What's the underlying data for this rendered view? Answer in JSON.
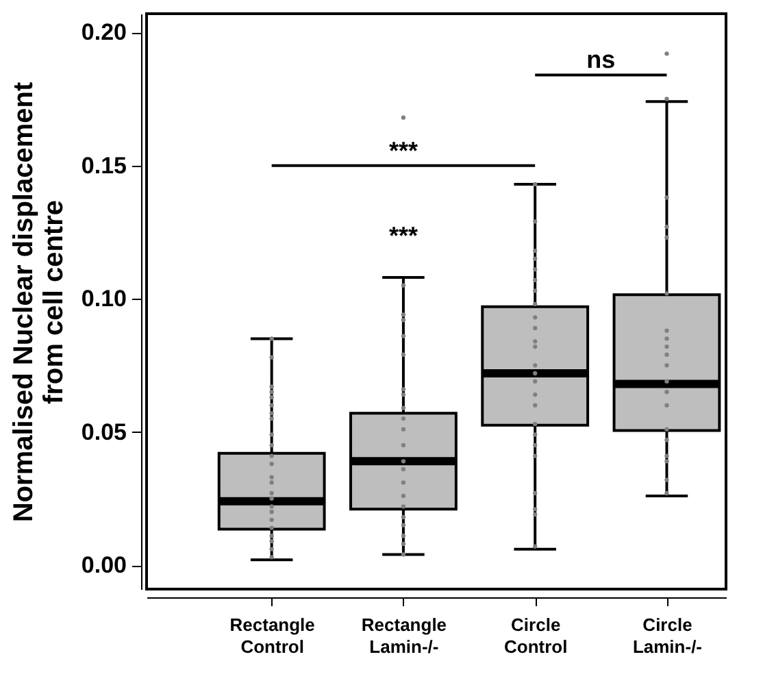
{
  "chart_data": {
    "type": "box",
    "ylabel": "Normalised Nuclear displacement\nfrom cell centre",
    "categories": [
      "Rectangle Control",
      "Rectangle Lamin-/-",
      "Circle Control",
      "Circle Lamin-/-"
    ],
    "ylim": [
      -0.009,
      0.207
    ],
    "yticks": [
      {
        "value": 0,
        "label": "0.00"
      },
      {
        "value": 0.05,
        "label": "0.05"
      },
      {
        "value": 0.1,
        "label": "0.10"
      },
      {
        "value": 0.15,
        "label": "0.15"
      },
      {
        "value": 0.2,
        "label": "0.20"
      }
    ],
    "grid": false,
    "annotations": [
      "***",
      "***",
      "ns"
    ],
    "series": [
      {
        "color": "#bebebe",
        "boxes": [
          {
            "low": 0.002,
            "q1": 0.0135,
            "median": 0.024,
            "q3": 0.042,
            "high": 0.085
          },
          {
            "low": 0.004,
            "q1": 0.021,
            "median": 0.039,
            "q3": 0.057,
            "high": 0.108
          },
          {
            "low": 0.006,
            "q1": 0.0525,
            "median": 0.072,
            "q3": 0.097,
            "high": 0.143
          },
          {
            "low": 0.026,
            "q1": 0.0505,
            "median": 0.068,
            "q3": 0.1015,
            "high": 0.174
          }
        ]
      },
      {
        "type": "scatter",
        "color": "#808080",
        "x": [
          "Rectangle Control",
          "Rectangle Control",
          "Rectangle Control",
          "Rectangle Control",
          "Rectangle Control",
          "Rectangle Control",
          "Rectangle Control",
          "Rectangle Control",
          "Rectangle Control",
          "Rectangle Control",
          "Rectangle Control",
          "Rectangle Control",
          "Rectangle Control",
          "Rectangle Control",
          "Rectangle Control",
          "Rectangle Control",
          "Rectangle Control",
          "Rectangle Control",
          "Rectangle Control",
          "Rectangle Control",
          "Rectangle Control",
          "Rectangle Control",
          "Rectangle Control",
          "Rectangle Control",
          "Rectangle Lamin-/-",
          "Rectangle Lamin-/-",
          "Rectangle Lamin-/-",
          "Rectangle Lamin-/-",
          "Rectangle Lamin-/-",
          "Rectangle Lamin-/-",
          "Rectangle Lamin-/-",
          "Rectangle Lamin-/-",
          "Rectangle Lamin-/-",
          "Rectangle Lamin-/-",
          "Rectangle Lamin-/-",
          "Rectangle Lamin-/-",
          "Rectangle Lamin-/-",
          "Rectangle Lamin-/-",
          "Rectangle Lamin-/-",
          "Rectangle Lamin-/-",
          "Rectangle Lamin-/-",
          "Rectangle Lamin-/-",
          "Rectangle Lamin-/-",
          "Rectangle Lamin-/-",
          "Rectangle Lamin-/-",
          "Rectangle Lamin-/-",
          "Circle Control",
          "Circle Control",
          "Circle Control",
          "Circle Control",
          "Circle Control",
          "Circle Control",
          "Circle Control",
          "Circle Control",
          "Circle Control",
          "Circle Control",
          "Circle Control",
          "Circle Control",
          "Circle Control",
          "Circle Control",
          "Circle Control",
          "Circle Control",
          "Circle Control",
          "Circle Control",
          "Circle Control",
          "Circle Control",
          "Circle Control",
          "Circle Control",
          "Circle Control",
          "Circle Control",
          "Circle Control",
          "Circle Lamin-/-",
          "Circle Lamin-/-",
          "Circle Lamin-/-",
          "Circle Lamin-/-",
          "Circle Lamin-/-",
          "Circle Lamin-/-",
          "Circle Lamin-/-",
          "Circle Lamin-/-",
          "Circle Lamin-/-",
          "Circle Lamin-/-",
          "Circle Lamin-/-",
          "Circle Lamin-/-",
          "Circle Lamin-/-",
          "Circle Lamin-/-",
          "Circle Lamin-/-",
          "Circle Lamin-/-",
          "Circle Lamin-/-",
          "Circle Lamin-/-",
          "Circle Lamin-/-",
          "Circle Lamin-/-"
        ],
        "values": [
          0.085,
          0.078,
          0.067,
          0.065,
          0.063,
          0.06,
          0.057,
          0.055,
          0.049,
          0.045,
          0.041,
          0.038,
          0.033,
          0.031,
          0.027,
          0.025,
          0.022,
          0.02,
          0.017,
          0.014,
          0.011,
          0.009,
          0.006,
          0.003,
          0.168,
          0.105,
          0.094,
          0.092,
          0.086,
          0.079,
          0.066,
          0.064,
          0.059,
          0.055,
          0.051,
          0.045,
          0.039,
          0.036,
          0.031,
          0.026,
          0.022,
          0.018,
          0.015,
          0.011,
          0.008,
          0.004,
          0.143,
          0.129,
          0.118,
          0.115,
          0.111,
          0.107,
          0.103,
          0.098,
          0.093,
          0.089,
          0.084,
          0.082,
          0.075,
          0.072,
          0.069,
          0.064,
          0.06,
          0.053,
          0.049,
          0.045,
          0.041,
          0.027,
          0.021,
          0.019,
          0.007,
          0.192,
          0.175,
          0.138,
          0.127,
          0.123,
          0.102,
          0.088,
          0.085,
          0.082,
          0.079,
          0.075,
          0.069,
          0.065,
          0.06,
          0.051,
          0.047,
          0.041,
          0.039,
          0.032,
          0.027
        ]
      }
    ]
  }
}
